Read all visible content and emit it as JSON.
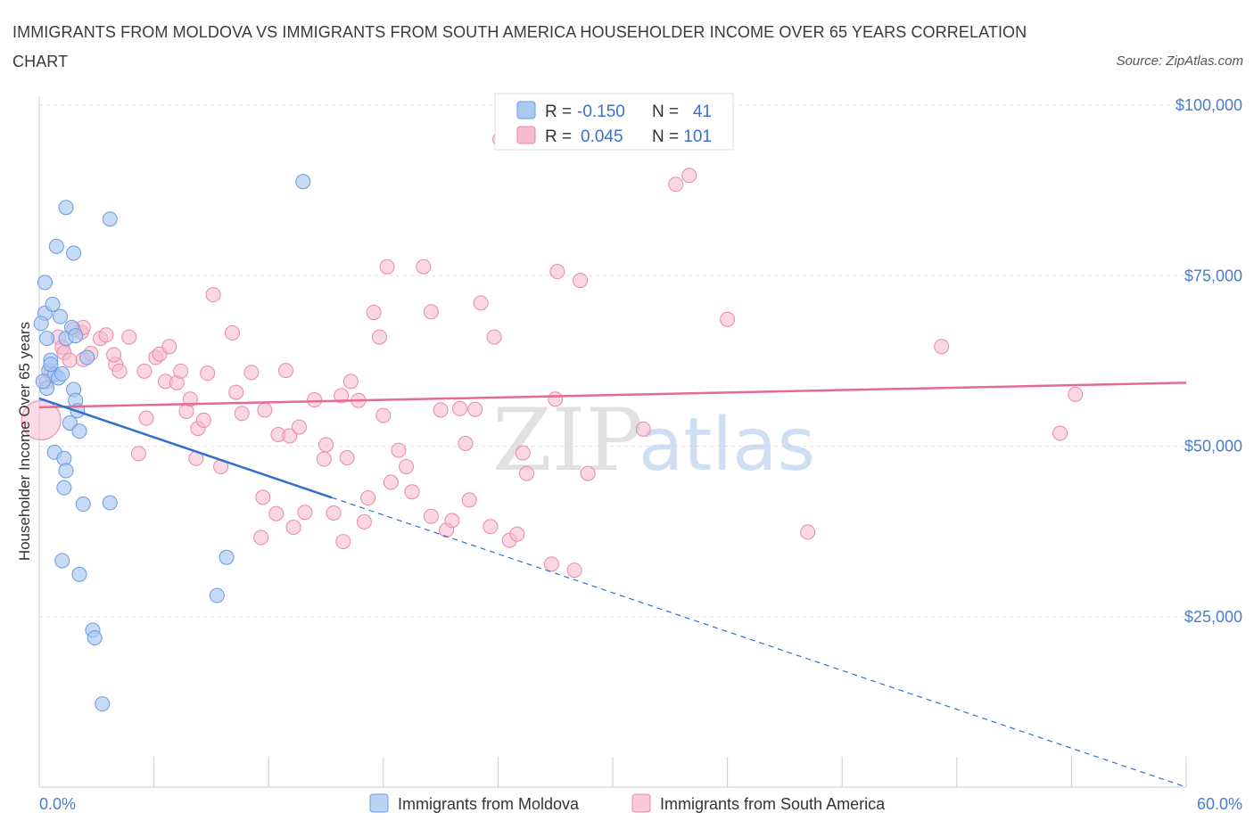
{
  "title": "IMMIGRANTS FROM MOLDOVA VS IMMIGRANTS FROM SOUTH AMERICA HOUSEHOLDER INCOME OVER 65 YEARS CORRELATION CHART",
  "source": "Source: ZipAtlas.com",
  "watermark": {
    "zip": "ZIP",
    "atlas": "atlas"
  },
  "colors": {
    "moldova_fill": "#a9c8f2",
    "moldova_stroke": "#6a9ae0",
    "moldova_line": "#2f6fd0",
    "sa_fill": "#f6bccd",
    "sa_stroke": "#e88aa8",
    "sa_line": "#e56a92"
  },
  "stats_box": {
    "r_label": "R =",
    "n_label": "N =",
    "moldova": {
      "r": "-0.150",
      "n": "41"
    },
    "south_america": {
      "r": "0.045",
      "n": "101"
    }
  },
  "chart_data": {
    "type": "scatter",
    "xlabel": "",
    "ylabel": "Householder Income Over 65 years",
    "xlim": [
      0,
      60
    ],
    "ylim": [
      0,
      100000
    ],
    "x_tick_labels": [
      "0.0%",
      "60.0%"
    ],
    "y_tick_labels": [
      "$25,000",
      "$50,000",
      "$75,000",
      "$100,000"
    ],
    "y_ticks": [
      25000,
      50000,
      75000,
      100000
    ],
    "grid": true,
    "legend_position": "bottom",
    "series": [
      {
        "name": "Immigrants from Moldova",
        "trend": {
          "x0": 0,
          "y0": 57000,
          "x1": 60,
          "y1": 0,
          "solid_until_x": 15.3
        },
        "points": [
          [
            0.3,
            74000
          ],
          [
            0.3,
            69500
          ],
          [
            0.1,
            68000
          ],
          [
            0.4,
            65800
          ],
          [
            0.7,
            70800
          ],
          [
            1.1,
            69000
          ],
          [
            1.4,
            65800
          ],
          [
            1.7,
            67400
          ],
          [
            0.5,
            61100
          ],
          [
            0.6,
            62600
          ],
          [
            0.8,
            60500
          ],
          [
            1.0,
            60000
          ],
          [
            1.2,
            60600
          ],
          [
            0.4,
            58500
          ],
          [
            1.8,
            58300
          ],
          [
            1.9,
            56700
          ],
          [
            2.5,
            63000
          ],
          [
            2.0,
            55200
          ],
          [
            1.6,
            53400
          ],
          [
            2.1,
            52200
          ],
          [
            0.8,
            49100
          ],
          [
            1.3,
            48200
          ],
          [
            1.4,
            46400
          ],
          [
            1.3,
            43900
          ],
          [
            2.3,
            41500
          ],
          [
            3.7,
            41700
          ],
          [
            1.2,
            33200
          ],
          [
            2.1,
            31200
          ],
          [
            2.8,
            23000
          ],
          [
            2.9,
            21900
          ],
          [
            3.3,
            12200
          ],
          [
            1.4,
            85000
          ],
          [
            3.7,
            83300
          ],
          [
            0.9,
            79300
          ],
          [
            1.8,
            78300
          ],
          [
            13.8,
            88800
          ],
          [
            9.8,
            33700
          ],
          [
            9.3,
            28100
          ],
          [
            0.6,
            62000
          ],
          [
            1.9,
            66200
          ],
          [
            0.2,
            59500
          ]
        ]
      },
      {
        "name": "Immigrants from South America",
        "trend": {
          "x0": 0,
          "y0": 55700,
          "x1": 60,
          "y1": 59300
        },
        "points": [
          [
            0.1,
            53800
          ],
          [
            0.4,
            59500
          ],
          [
            1.0,
            66000
          ],
          [
            1.2,
            64500
          ],
          [
            1.3,
            63700
          ],
          [
            1.6,
            62600
          ],
          [
            2.2,
            66700
          ],
          [
            2.3,
            67400
          ],
          [
            2.3,
            62700
          ],
          [
            2.7,
            63600
          ],
          [
            3.2,
            65800
          ],
          [
            3.5,
            66300
          ],
          [
            4.0,
            62000
          ],
          [
            4.2,
            61000
          ],
          [
            4.7,
            66000
          ],
          [
            5.2,
            48900
          ],
          [
            5.5,
            61000
          ],
          [
            5.6,
            54100
          ],
          [
            6.1,
            63000
          ],
          [
            6.3,
            63500
          ],
          [
            6.6,
            59500
          ],
          [
            6.8,
            64600
          ],
          [
            7.2,
            59300
          ],
          [
            7.4,
            61000
          ],
          [
            7.7,
            55100
          ],
          [
            7.9,
            56900
          ],
          [
            8.2,
            48200
          ],
          [
            8.3,
            52600
          ],
          [
            8.6,
            53800
          ],
          [
            8.8,
            60700
          ],
          [
            9.1,
            72200
          ],
          [
            10.1,
            66600
          ],
          [
            10.3,
            57900
          ],
          [
            10.6,
            54800
          ],
          [
            11.1,
            60800
          ],
          [
            11.6,
            36600
          ],
          [
            11.7,
            42500
          ],
          [
            11.8,
            55300
          ],
          [
            12.4,
            40100
          ],
          [
            12.5,
            51700
          ],
          [
            12.9,
            61100
          ],
          [
            13.1,
            51500
          ],
          [
            13.3,
            38100
          ],
          [
            13.6,
            52800
          ],
          [
            13.9,
            40300
          ],
          [
            14.4,
            56800
          ],
          [
            14.9,
            48100
          ],
          [
            15.0,
            50200
          ],
          [
            15.4,
            40200
          ],
          [
            15.9,
            36000
          ],
          [
            16.1,
            48300
          ],
          [
            16.3,
            59500
          ],
          [
            16.7,
            56700
          ],
          [
            17.0,
            38900
          ],
          [
            17.2,
            42400
          ],
          [
            17.5,
            69600
          ],
          [
            17.8,
            66000
          ],
          [
            18.0,
            54500
          ],
          [
            18.2,
            76300
          ],
          [
            18.4,
            44700
          ],
          [
            18.8,
            49400
          ],
          [
            19.2,
            47000
          ],
          [
            19.5,
            43300
          ],
          [
            20.1,
            76300
          ],
          [
            20.5,
            69700
          ],
          [
            20.5,
            39700
          ],
          [
            21.0,
            55300
          ],
          [
            21.3,
            37700
          ],
          [
            21.6,
            39100
          ],
          [
            22.0,
            55500
          ],
          [
            22.3,
            50400
          ],
          [
            22.5,
            42100
          ],
          [
            22.8,
            55400
          ],
          [
            23.1,
            71000
          ],
          [
            23.6,
            38200
          ],
          [
            23.8,
            66000
          ],
          [
            24.1,
            95000
          ],
          [
            24.6,
            36200
          ],
          [
            25.0,
            37100
          ],
          [
            25.3,
            49000
          ],
          [
            25.5,
            46000
          ],
          [
            26.8,
            32700
          ],
          [
            27.0,
            56900
          ],
          [
            27.1,
            75600
          ],
          [
            28.0,
            31800
          ],
          [
            28.3,
            74300
          ],
          [
            28.7,
            46000
          ],
          [
            31.6,
            52500
          ],
          [
            32.3,
            96200
          ],
          [
            33.3,
            88400
          ],
          [
            34.0,
            89700
          ],
          [
            36.0,
            68600
          ],
          [
            40.2,
            37400
          ],
          [
            47.2,
            64600
          ],
          [
            53.4,
            51900
          ],
          [
            54.2,
            57600
          ],
          [
            0.6,
            60500
          ],
          [
            1.8,
            67100
          ],
          [
            3.9,
            63400
          ],
          [
            9.5,
            47000
          ],
          [
            15.8,
            57400
          ]
        ]
      }
    ]
  }
}
